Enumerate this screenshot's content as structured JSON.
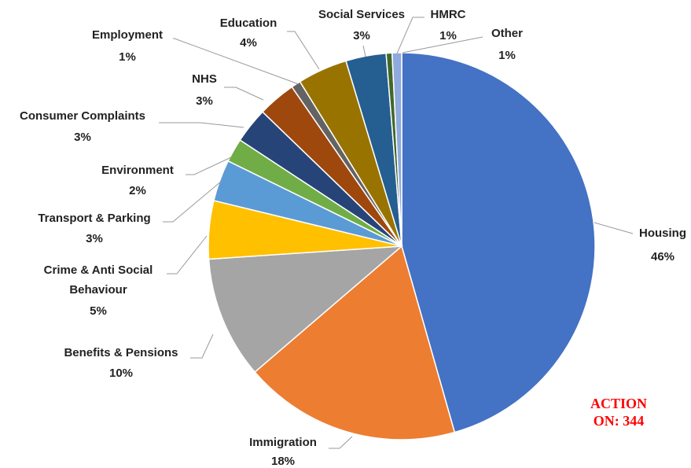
{
  "chart_data": {
    "type": "pie",
    "title": "",
    "start_angle_deg": 0,
    "direction": "clockwise",
    "slices": [
      {
        "name": "Housing",
        "label": "46%",
        "value": 46.0,
        "color": "#4472C4"
      },
      {
        "name": "Immigration",
        "label": "18%",
        "value": 18.3,
        "color": "#ED7D31"
      },
      {
        "name": "Benefits & Pensions",
        "label": "10%",
        "value": 10.3,
        "color": "#A5A5A5"
      },
      {
        "name": "Crime & Anti Social Behaviour",
        "label": "5%",
        "value": 4.9,
        "color": "#FFC000"
      },
      {
        "name": "Transport & Parking",
        "label": "3%",
        "value": 3.5,
        "color": "#5B9BD5"
      },
      {
        "name": "Environment",
        "label": "2%",
        "value": 2.0,
        "color": "#70AD47"
      },
      {
        "name": "Consumer Complaints",
        "label": "3%",
        "value": 3.0,
        "color": "#264478"
      },
      {
        "name": "NHS",
        "label": "3%",
        "value": 3.2,
        "color": "#9E480E"
      },
      {
        "name": "Employment",
        "label": "1%",
        "value": 0.8,
        "color": "#636363"
      },
      {
        "name": "Education",
        "label": "4%",
        "value": 4.2,
        "color": "#997300"
      },
      {
        "name": "Social Services",
        "label": "3%",
        "value": 3.4,
        "color": "#255E91"
      },
      {
        "name": "HMRC",
        "label": "1%",
        "value": 0.5,
        "color": "#43682B"
      },
      {
        "name": "Other",
        "label": "1%",
        "value": 0.8,
        "color": "#8FAADC"
      }
    ]
  },
  "annotation": {
    "line1": "ACTION",
    "line2": "ON: 344"
  }
}
